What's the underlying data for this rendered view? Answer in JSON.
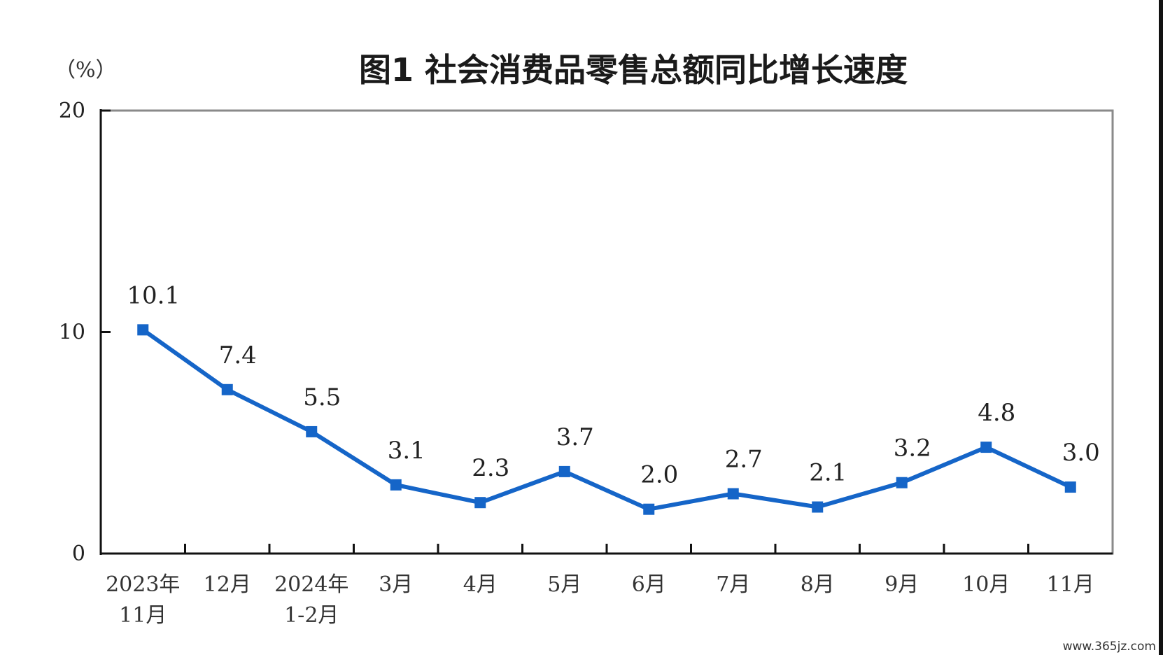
{
  "chart_data": {
    "type": "line",
    "title": "图1  社会消费品零售总额同比增长速度",
    "unit_label": "（%）",
    "ylim": [
      0,
      20
    ],
    "y_ticks": [
      "0",
      "10",
      "20"
    ],
    "categories": [
      [
        "2023年",
        "11月"
      ],
      [
        "12月"
      ],
      [
        "2024年",
        "1-2月"
      ],
      [
        "3月"
      ],
      [
        "4月"
      ],
      [
        "5月"
      ],
      [
        "6月"
      ],
      [
        "7月"
      ],
      [
        "8月"
      ],
      [
        "9月"
      ],
      [
        "10月"
      ],
      [
        "11月"
      ]
    ],
    "values": [
      10.1,
      7.4,
      5.5,
      3.1,
      2.3,
      3.7,
      2.0,
      2.7,
      2.1,
      3.2,
      4.8,
      3.0
    ],
    "value_labels": [
      "10.1",
      "7.4",
      "5.5",
      "3.1",
      "2.3",
      "3.7",
      "2.0",
      "2.7",
      "2.1",
      "3.2",
      "4.8",
      "3.0"
    ],
    "grid": false,
    "line_color": "#1565c8"
  },
  "watermark": "www.365jz.com"
}
